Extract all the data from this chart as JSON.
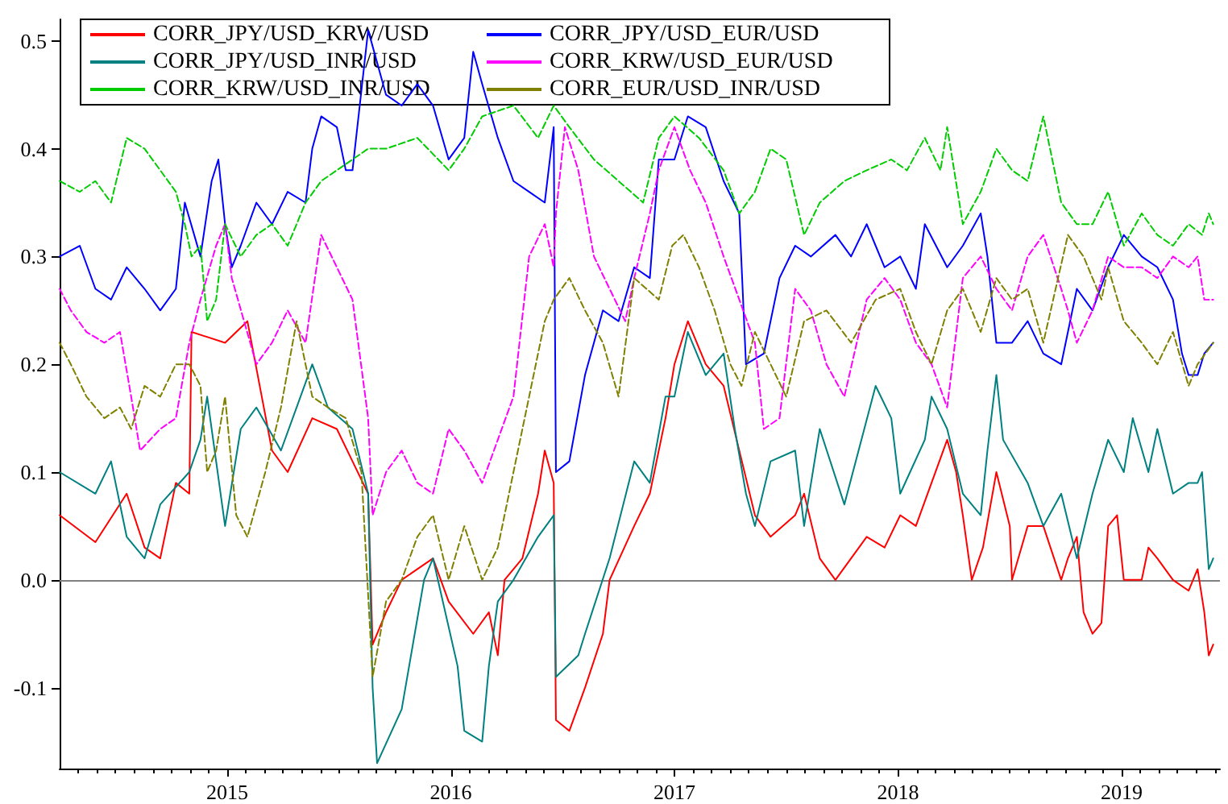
{
  "chart_data": {
    "type": "line",
    "xlim": [
      2014.25,
      2019.44
    ],
    "xticks": [
      2015,
      2016,
      2017,
      2018,
      2019
    ],
    "ylim": [
      -0.175,
      0.52
    ],
    "yticks": [
      -0.1,
      {
        "value": 0,
        "label": "0.0"
      },
      0.1,
      0.2,
      0.3,
      0.4,
      0.5
    ],
    "grid": false,
    "legend": "top left",
    "marker": "none",
    "ref_lines": [
      {
        "axis": "y",
        "value": 0,
        "color": "#808080"
      }
    ],
    "series": [
      {
        "name": "CORR_JPY/USD_KRW/USD",
        "color": "#ff0000",
        "line_style": "solid",
        "x": [
          2014.25,
          2014.41,
          2014.55,
          2014.63,
          2014.7,
          2014.77,
          2014.83,
          2014.84,
          2014.99,
          2015.09,
          2015.2,
          2015.27,
          2015.38,
          2015.49,
          2015.56,
          2015.63,
          2015.65,
          2015.71,
          2015.78,
          2015.92,
          2015.99,
          2016.1,
          2016.17,
          2016.21,
          2016.24,
          2016.32,
          2016.39,
          2016.42,
          2016.46,
          2016.47,
          2016.53,
          2016.6,
          2016.68,
          2016.71,
          2016.82,
          2016.89,
          2016.93,
          2016.96,
          2017.0,
          2017.06,
          2017.14,
          2017.22,
          2017.29,
          2017.36,
          2017.43,
          2017.54,
          2017.58,
          2017.65,
          2017.72,
          2017.79,
          2017.86,
          2017.94,
          2018.01,
          2018.08,
          2018.15,
          2018.22,
          2018.26,
          2018.29,
          2018.33,
          2018.38,
          2018.44,
          2018.5,
          2018.51,
          2018.58,
          2018.65,
          2018.73,
          2018.76,
          2018.8,
          2018.83,
          2018.87,
          2018.91,
          2018.94,
          2018.98,
          2019.01,
          2019.09,
          2019.12,
          2019.16,
          2019.23,
          2019.3,
          2019.34,
          2019.37,
          2019.39,
          2019.41
        ],
        "values": [
          0.06,
          0.035,
          0.08,
          0.03,
          0.02,
          0.09,
          0.08,
          0.23,
          0.22,
          0.24,
          0.12,
          0.1,
          0.15,
          0.14,
          0.11,
          0.08,
          -0.06,
          -0.03,
          0.0,
          0.02,
          -0.02,
          -0.05,
          -0.03,
          -0.07,
          0.0,
          0.02,
          0.08,
          0.12,
          0.09,
          -0.13,
          -0.14,
          -0.1,
          -0.05,
          0.0,
          0.05,
          0.08,
          0.12,
          0.15,
          0.2,
          0.24,
          0.2,
          0.18,
          0.12,
          0.06,
          0.04,
          0.06,
          0.08,
          0.02,
          0.0,
          0.02,
          0.04,
          0.03,
          0.06,
          0.05,
          0.09,
          0.13,
          0.1,
          0.06,
          0.0,
          0.03,
          0.1,
          0.05,
          0.0,
          0.05,
          0.05,
          0.0,
          0.02,
          0.04,
          -0.03,
          -0.05,
          -0.04,
          0.05,
          0.06,
          0.0,
          0.0,
          0.03,
          0.02,
          0.0,
          -0.01,
          0.01,
          -0.03,
          -0.07,
          -0.06
        ]
      },
      {
        "name": "CORR_JPY/USD_EUR/USD",
        "color": "#0000ff",
        "line_style": "solid",
        "x": [
          2014.25,
          2014.34,
          2014.41,
          2014.48,
          2014.55,
          2014.63,
          2014.7,
          2014.77,
          2014.81,
          2014.88,
          2014.93,
          2014.96,
          2014.99,
          2015.02,
          2015.06,
          2015.13,
          2015.2,
          2015.27,
          2015.35,
          2015.38,
          2015.42,
          2015.49,
          2015.53,
          2015.56,
          2015.63,
          2015.71,
          2015.78,
          2015.85,
          2015.92,
          2015.99,
          2016.06,
          2016.1,
          2016.14,
          2016.21,
          2016.28,
          2016.35,
          2016.42,
          2016.46,
          2016.47,
          2016.53,
          2016.6,
          2016.68,
          2016.75,
          2016.82,
          2016.89,
          2016.93,
          2017.0,
          2017.06,
          2017.14,
          2017.22,
          2017.29,
          2017.32,
          2017.4,
          2017.47,
          2017.54,
          2017.61,
          2017.72,
          2017.79,
          2017.86,
          2017.94,
          2018.01,
          2018.08,
          2018.12,
          2018.22,
          2018.29,
          2018.37,
          2018.4,
          2018.44,
          2018.51,
          2018.58,
          2018.65,
          2018.73,
          2018.8,
          2018.87,
          2018.94,
          2019.01,
          2019.09,
          2019.16,
          2019.23,
          2019.27,
          2019.3,
          2019.34,
          2019.37,
          2019.41
        ],
        "values": [
          0.3,
          0.31,
          0.27,
          0.26,
          0.29,
          0.27,
          0.25,
          0.27,
          0.35,
          0.3,
          0.37,
          0.39,
          0.33,
          0.29,
          0.31,
          0.35,
          0.33,
          0.36,
          0.35,
          0.4,
          0.43,
          0.42,
          0.38,
          0.38,
          0.51,
          0.45,
          0.44,
          0.46,
          0.44,
          0.39,
          0.41,
          0.49,
          0.46,
          0.41,
          0.37,
          0.36,
          0.35,
          0.42,
          0.1,
          0.11,
          0.19,
          0.25,
          0.24,
          0.29,
          0.28,
          0.39,
          0.39,
          0.43,
          0.42,
          0.37,
          0.34,
          0.2,
          0.21,
          0.28,
          0.31,
          0.3,
          0.32,
          0.3,
          0.33,
          0.29,
          0.3,
          0.27,
          0.33,
          0.29,
          0.31,
          0.34,
          0.3,
          0.22,
          0.22,
          0.24,
          0.21,
          0.2,
          0.27,
          0.25,
          0.29,
          0.32,
          0.3,
          0.29,
          0.26,
          0.21,
          0.19,
          0.19,
          0.21,
          0.22
        ]
      },
      {
        "name": "CORR_JPY/USD_INR/USD",
        "color": "#008080",
        "line_style": "solid",
        "x": [
          2014.25,
          2014.41,
          2014.48,
          2014.55,
          2014.63,
          2014.7,
          2014.83,
          2014.88,
          2014.91,
          2014.99,
          2015.06,
          2015.13,
          2015.24,
          2015.38,
          2015.45,
          2015.56,
          2015.63,
          2015.65,
          2015.67,
          2015.78,
          2015.88,
          2015.92,
          2016.03,
          2016.06,
          2016.14,
          2016.17,
          2016.21,
          2016.28,
          2016.39,
          2016.46,
          2016.47,
          2016.57,
          2016.6,
          2016.71,
          2016.82,
          2016.89,
          2016.96,
          2017.0,
          2017.06,
          2017.14,
          2017.22,
          2017.27,
          2017.32,
          2017.36,
          2017.43,
          2017.54,
          2017.58,
          2017.65,
          2017.76,
          2017.9,
          2017.97,
          2018.01,
          2018.12,
          2018.15,
          2018.22,
          2018.29,
          2018.37,
          2018.4,
          2018.44,
          2018.47,
          2018.58,
          2018.65,
          2018.73,
          2018.8,
          2018.87,
          2018.94,
          2019.01,
          2019.05,
          2019.12,
          2019.16,
          2019.23,
          2019.3,
          2019.34,
          2019.36,
          2019.39,
          2019.41
        ],
        "values": [
          0.1,
          0.08,
          0.11,
          0.04,
          0.02,
          0.07,
          0.1,
          0.13,
          0.17,
          0.05,
          0.14,
          0.16,
          0.12,
          0.2,
          0.16,
          0.14,
          0.08,
          -0.1,
          -0.17,
          -0.12,
          0.0,
          0.02,
          -0.08,
          -0.14,
          -0.15,
          -0.08,
          -0.02,
          0.0,
          0.04,
          0.06,
          -0.09,
          -0.07,
          -0.05,
          0.02,
          0.11,
          0.09,
          0.17,
          0.17,
          0.23,
          0.19,
          0.21,
          0.14,
          0.08,
          0.05,
          0.11,
          0.12,
          0.05,
          0.14,
          0.07,
          0.18,
          0.15,
          0.08,
          0.13,
          0.17,
          0.14,
          0.08,
          0.06,
          0.12,
          0.19,
          0.13,
          0.09,
          0.05,
          0.08,
          0.02,
          0.08,
          0.13,
          0.1,
          0.15,
          0.1,
          0.14,
          0.08,
          0.09,
          0.09,
          0.1,
          0.01,
          0.02
        ]
      },
      {
        "name": "CORR_KRW/USD_EUR/USD",
        "color": "#ff00ff",
        "line_style": "dashed",
        "x": [
          2014.25,
          2014.3,
          2014.37,
          2014.45,
          2014.52,
          2014.57,
          2014.61,
          2014.7,
          2014.77,
          2014.83,
          2014.88,
          2014.95,
          2014.99,
          2015.02,
          2015.13,
          2015.2,
          2015.27,
          2015.35,
          2015.42,
          2015.49,
          2015.56,
          2015.63,
          2015.65,
          2015.71,
          2015.78,
          2015.85,
          2015.92,
          2015.99,
          2016.06,
          2016.14,
          2016.21,
          2016.28,
          2016.35,
          2016.42,
          2016.46,
          2016.47,
          2016.51,
          2016.57,
          2016.64,
          2016.71,
          2016.78,
          2016.82,
          2016.89,
          2016.93,
          2017.0,
          2017.07,
          2017.14,
          2017.22,
          2017.29,
          2017.36,
          2017.4,
          2017.47,
          2017.54,
          2017.61,
          2017.68,
          2017.76,
          2017.86,
          2017.94,
          2018.01,
          2018.08,
          2018.15,
          2018.22,
          2018.29,
          2018.37,
          2018.44,
          2018.51,
          2018.58,
          2018.65,
          2018.73,
          2018.76,
          2018.8,
          2018.87,
          2018.94,
          2019.01,
          2019.09,
          2019.16,
          2019.23,
          2019.3,
          2019.34,
          2019.37,
          2019.41
        ],
        "values": [
          0.27,
          0.25,
          0.23,
          0.22,
          0.23,
          0.17,
          0.12,
          0.14,
          0.15,
          0.22,
          0.26,
          0.31,
          0.33,
          0.28,
          0.2,
          0.22,
          0.25,
          0.22,
          0.32,
          0.29,
          0.26,
          0.15,
          0.06,
          0.1,
          0.12,
          0.09,
          0.08,
          0.14,
          0.12,
          0.09,
          0.13,
          0.17,
          0.3,
          0.33,
          0.29,
          0.34,
          0.42,
          0.38,
          0.3,
          0.27,
          0.24,
          0.28,
          0.34,
          0.38,
          0.42,
          0.38,
          0.35,
          0.3,
          0.26,
          0.22,
          0.14,
          0.15,
          0.27,
          0.25,
          0.2,
          0.17,
          0.26,
          0.28,
          0.26,
          0.22,
          0.2,
          0.16,
          0.28,
          0.3,
          0.27,
          0.25,
          0.3,
          0.32,
          0.27,
          0.25,
          0.22,
          0.25,
          0.3,
          0.29,
          0.29,
          0.28,
          0.3,
          0.29,
          0.3,
          0.26,
          0.26
        ]
      },
      {
        "name": "CORR_KRW/USD_INR/USD",
        "color": "#00cc00",
        "line_style": "dashed",
        "x": [
          2014.25,
          2014.34,
          2014.41,
          2014.48,
          2014.55,
          2014.63,
          2014.7,
          2014.77,
          2014.81,
          2014.84,
          2014.88,
          2014.91,
          2014.95,
          2014.99,
          2015.06,
          2015.13,
          2015.2,
          2015.27,
          2015.35,
          2015.42,
          2015.49,
          2015.56,
          2015.63,
          2015.71,
          2015.85,
          2015.99,
          2016.06,
          2016.14,
          2016.28,
          2016.39,
          2016.46,
          2016.53,
          2016.64,
          2016.75,
          2016.86,
          2016.93,
          2017.0,
          2017.11,
          2017.22,
          2017.29,
          2017.36,
          2017.43,
          2017.5,
          2017.58,
          2017.65,
          2017.76,
          2017.86,
          2017.97,
          2018.04,
          2018.12,
          2018.19,
          2018.22,
          2018.29,
          2018.37,
          2018.44,
          2018.51,
          2018.58,
          2018.65,
          2018.73,
          2018.8,
          2018.87,
          2018.94,
          2019.01,
          2019.09,
          2019.16,
          2019.23,
          2019.3,
          2019.36,
          2019.39,
          2019.41
        ],
        "values": [
          0.37,
          0.36,
          0.37,
          0.35,
          0.41,
          0.4,
          0.38,
          0.36,
          0.33,
          0.3,
          0.31,
          0.24,
          0.26,
          0.33,
          0.3,
          0.32,
          0.33,
          0.31,
          0.35,
          0.37,
          0.38,
          0.39,
          0.4,
          0.4,
          0.41,
          0.38,
          0.4,
          0.43,
          0.44,
          0.41,
          0.44,
          0.42,
          0.39,
          0.37,
          0.35,
          0.41,
          0.43,
          0.41,
          0.38,
          0.34,
          0.36,
          0.4,
          0.39,
          0.32,
          0.35,
          0.37,
          0.38,
          0.39,
          0.38,
          0.41,
          0.38,
          0.42,
          0.33,
          0.36,
          0.4,
          0.38,
          0.37,
          0.43,
          0.35,
          0.33,
          0.33,
          0.36,
          0.31,
          0.34,
          0.32,
          0.31,
          0.33,
          0.32,
          0.34,
          0.33
        ]
      },
      {
        "name": "CORR_EUR/USD_INR/USD",
        "color": "#808000",
        "line_style": "dashed",
        "x": [
          2014.25,
          2014.3,
          2014.37,
          2014.45,
          2014.52,
          2014.57,
          2014.63,
          2014.7,
          2014.77,
          2014.83,
          2014.88,
          2014.91,
          2014.95,
          2014.99,
          2015.04,
          2015.09,
          2015.17,
          2015.24,
          2015.31,
          2015.38,
          2015.45,
          2015.53,
          2015.6,
          2015.65,
          2015.71,
          2015.78,
          2015.85,
          2015.92,
          2015.99,
          2016.06,
          2016.14,
          2016.21,
          2016.28,
          2016.35,
          2016.42,
          2016.46,
          2016.53,
          2016.6,
          2016.68,
          2016.75,
          2016.82,
          2016.93,
          2016.99,
          2017.04,
          2017.11,
          2017.18,
          2017.25,
          2017.3,
          2017.36,
          2017.43,
          2017.5,
          2017.58,
          2017.68,
          2017.79,
          2017.9,
          2018.01,
          2018.08,
          2018.15,
          2018.22,
          2018.29,
          2018.37,
          2018.44,
          2018.51,
          2018.58,
          2018.65,
          2018.76,
          2018.83,
          2018.91,
          2018.94,
          2019.01,
          2019.09,
          2019.16,
          2019.23,
          2019.3,
          2019.34,
          2019.41
        ],
        "values": [
          0.22,
          0.2,
          0.17,
          0.15,
          0.16,
          0.14,
          0.18,
          0.17,
          0.2,
          0.2,
          0.18,
          0.1,
          0.12,
          0.17,
          0.06,
          0.04,
          0.1,
          0.16,
          0.24,
          0.17,
          0.16,
          0.15,
          0.1,
          -0.09,
          -0.02,
          0.0,
          0.04,
          0.06,
          0.0,
          0.05,
          0.0,
          0.03,
          0.1,
          0.17,
          0.24,
          0.26,
          0.28,
          0.25,
          0.22,
          0.17,
          0.28,
          0.26,
          0.31,
          0.32,
          0.29,
          0.25,
          0.2,
          0.18,
          0.23,
          0.2,
          0.17,
          0.24,
          0.25,
          0.22,
          0.26,
          0.27,
          0.23,
          0.2,
          0.25,
          0.27,
          0.23,
          0.28,
          0.26,
          0.27,
          0.22,
          0.32,
          0.3,
          0.26,
          0.29,
          0.24,
          0.22,
          0.2,
          0.23,
          0.18,
          0.2,
          0.22
        ]
      }
    ]
  }
}
